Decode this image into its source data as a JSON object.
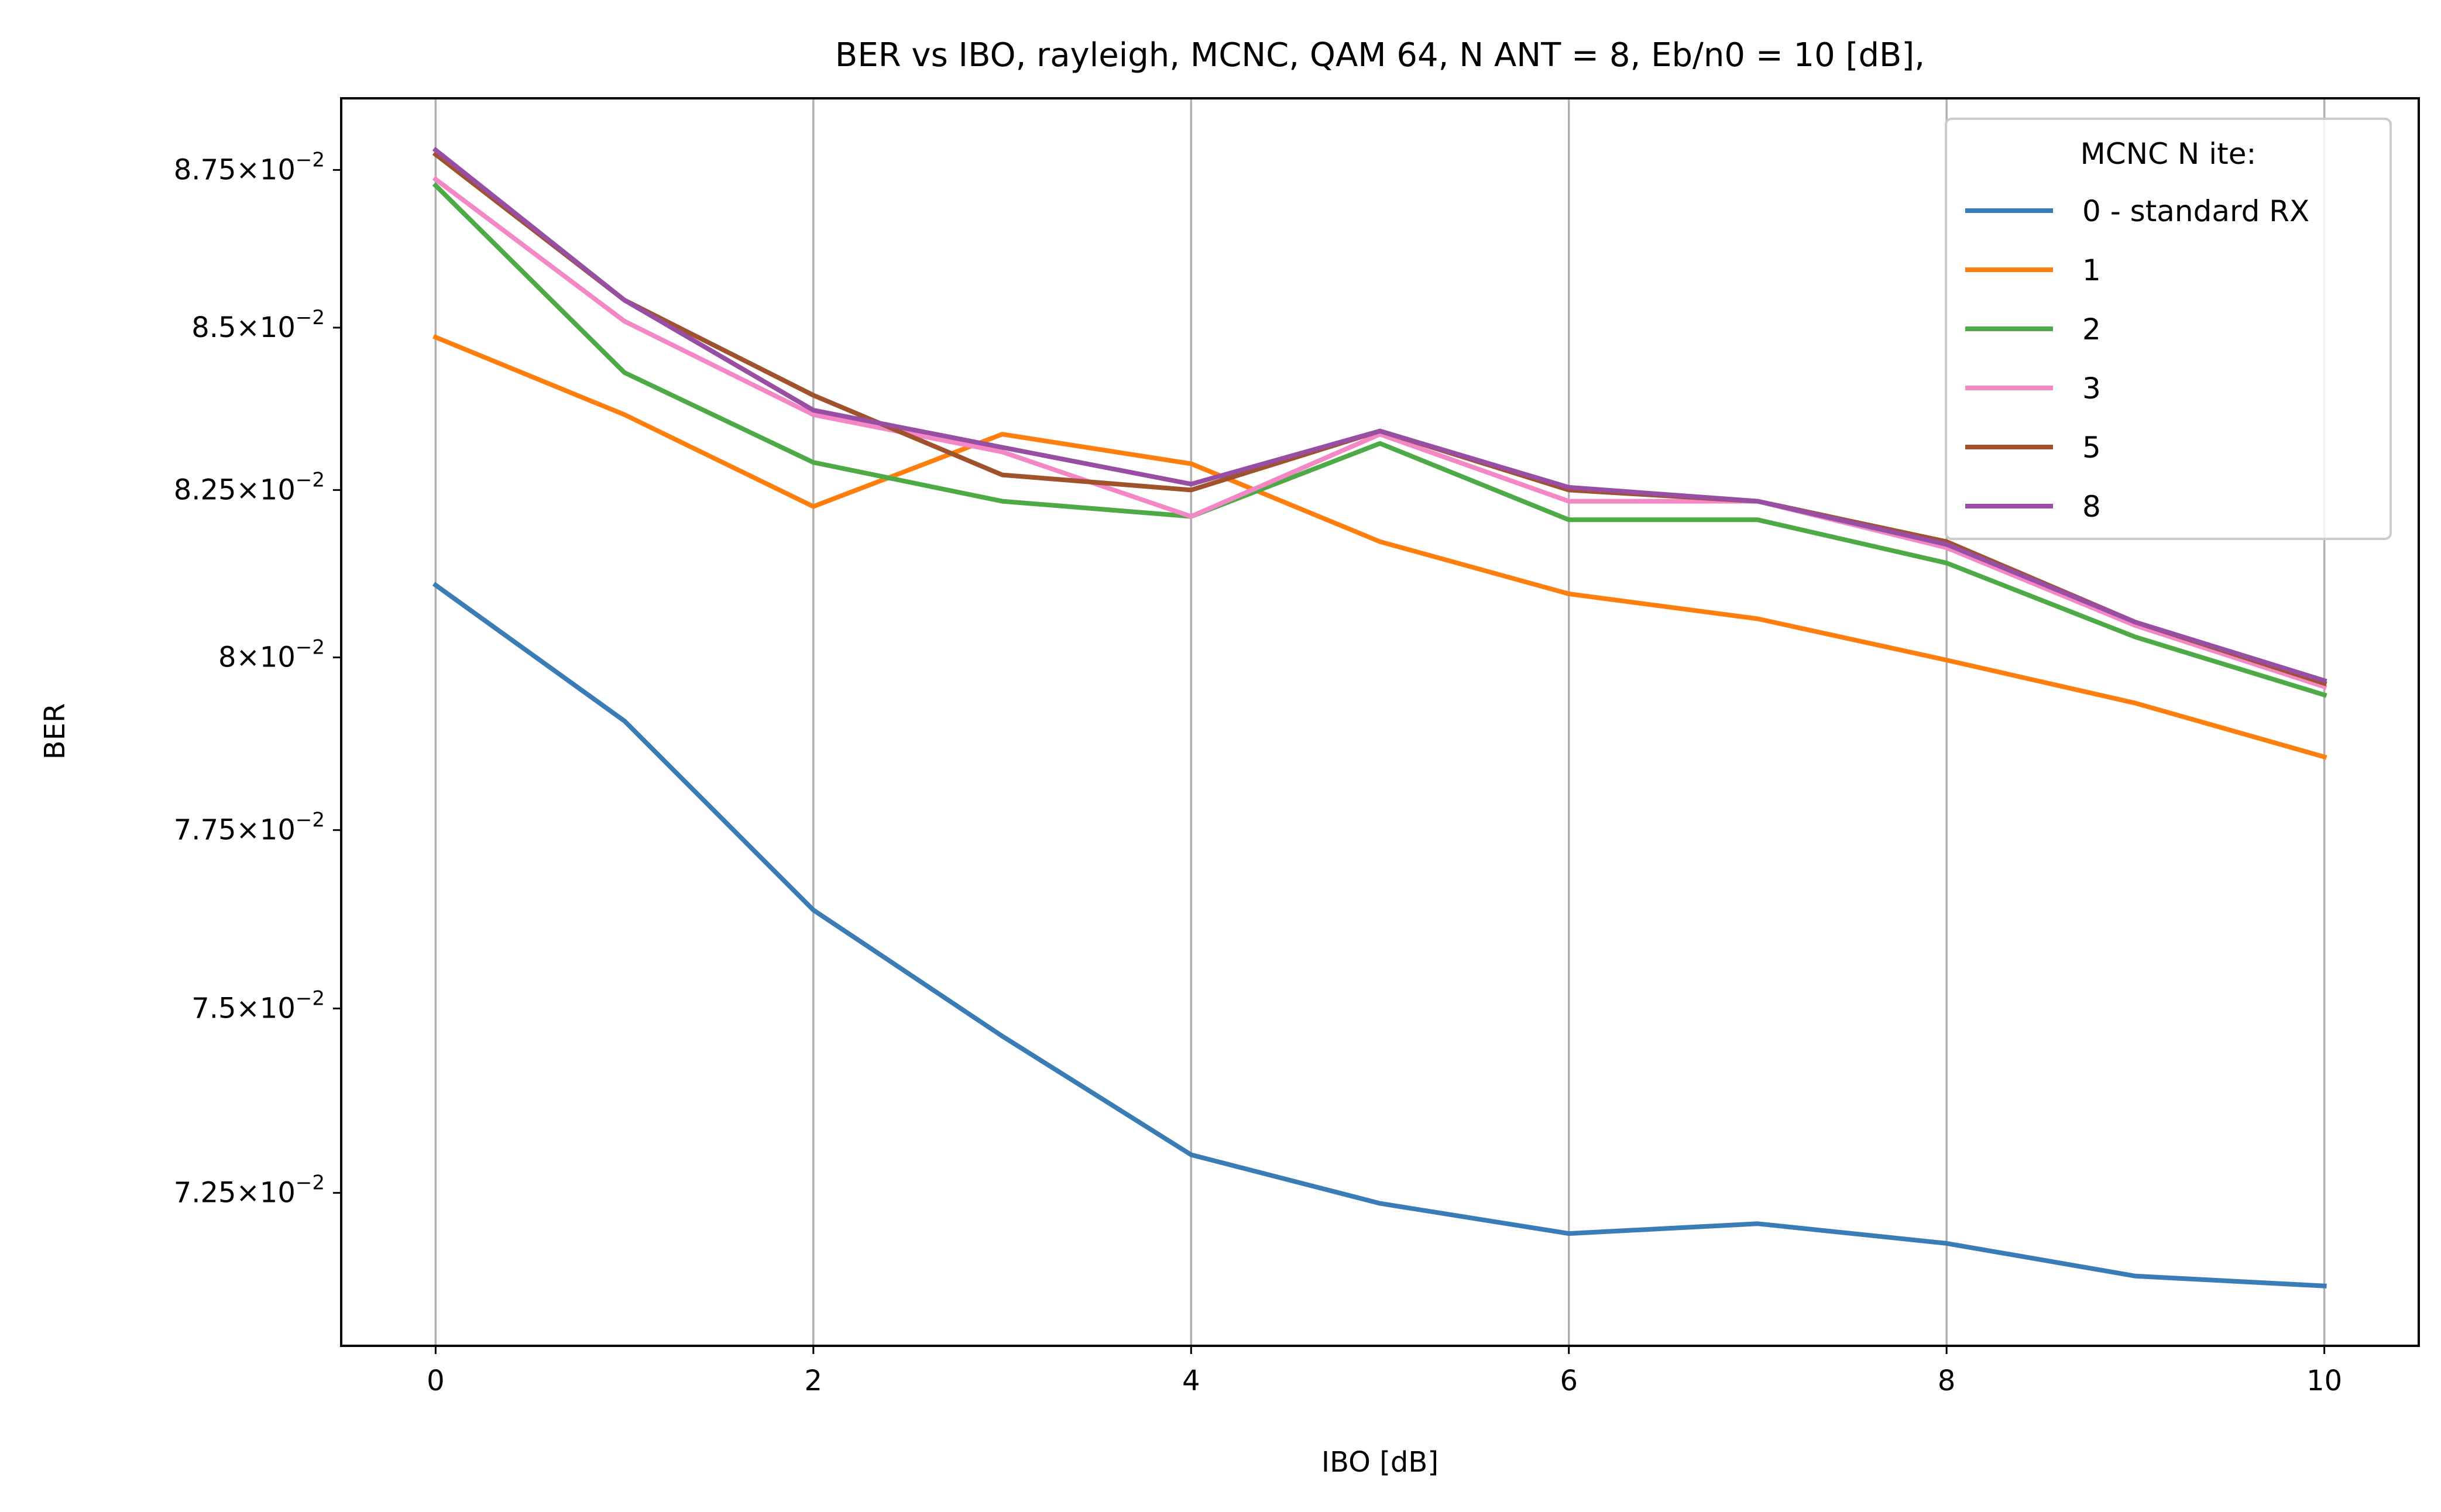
{
  "chart_data": {
    "type": "line",
    "title": "BER vs IBO, rayleigh, MCNC, QAM 64, N ANT = 8, Eb/n0 = 10 [dB],",
    "xlabel": "IBO [dB]",
    "ylabel": "BER",
    "xlim": [
      -0.5,
      10.5
    ],
    "ylim": [
      0.07049,
      0.08866
    ],
    "yscale": "log",
    "grid": "vertical-major",
    "x_ticks": [
      0,
      2,
      4,
      6,
      8,
      10
    ],
    "x_tick_labels": [
      "0",
      "2",
      "4",
      "6",
      "8",
      "10"
    ],
    "y_ticks": [
      0.0725,
      0.075,
      0.0775,
      0.08,
      0.0825,
      0.085,
      0.0875
    ],
    "y_tick_mantissas": [
      "7.25",
      "7.5",
      "7.75",
      "8",
      "8.25",
      "8.5",
      "8.75"
    ],
    "y_tick_times": "×",
    "y_tick_base": "10",
    "y_tick_exponent": "−2",
    "legend": {
      "title": "MCNC N ite:",
      "placement": "upper right"
    },
    "x": [
      0,
      1,
      2,
      3,
      4,
      5,
      6,
      7,
      8,
      9,
      10
    ],
    "series": [
      {
        "name": "0 - standard RX",
        "color": "#3a7cb6",
        "values": [
          0.08107,
          0.07907,
          0.07637,
          0.07462,
          0.07301,
          0.07236,
          0.07196,
          0.07209,
          0.07183,
          0.0714,
          0.07127
        ]
      },
      {
        "name": "1",
        "color": "#ff7f0e",
        "values": [
          0.08485,
          0.08365,
          0.08225,
          0.08335,
          0.0829,
          0.08172,
          0.08094,
          0.08057,
          0.07996,
          0.07933,
          0.07855
        ]
      },
      {
        "name": "2",
        "color": "#4daa46",
        "values": [
          0.08725,
          0.0843,
          0.08292,
          0.08233,
          0.0821,
          0.08321,
          0.08205,
          0.08205,
          0.0814,
          0.0803,
          0.07945
        ]
      },
      {
        "name": "3",
        "color": "#f487c5",
        "values": [
          0.08735,
          0.0851,
          0.08365,
          0.08308,
          0.0821,
          0.08335,
          0.08233,
          0.08233,
          0.08163,
          0.08047,
          0.07957
        ]
      },
      {
        "name": "5",
        "color": "#a0522d",
        "values": [
          0.08775,
          0.08543,
          0.08395,
          0.08273,
          0.0825,
          0.0834,
          0.0825,
          0.08233,
          0.08172,
          0.08052,
          0.07962
        ]
      },
      {
        "name": "8",
        "color": "#984ea3",
        "values": [
          0.08782,
          0.08543,
          0.08372,
          0.08315,
          0.08259,
          0.0834,
          0.08254,
          0.08233,
          0.08168,
          0.08052,
          0.07966
        ]
      }
    ]
  }
}
